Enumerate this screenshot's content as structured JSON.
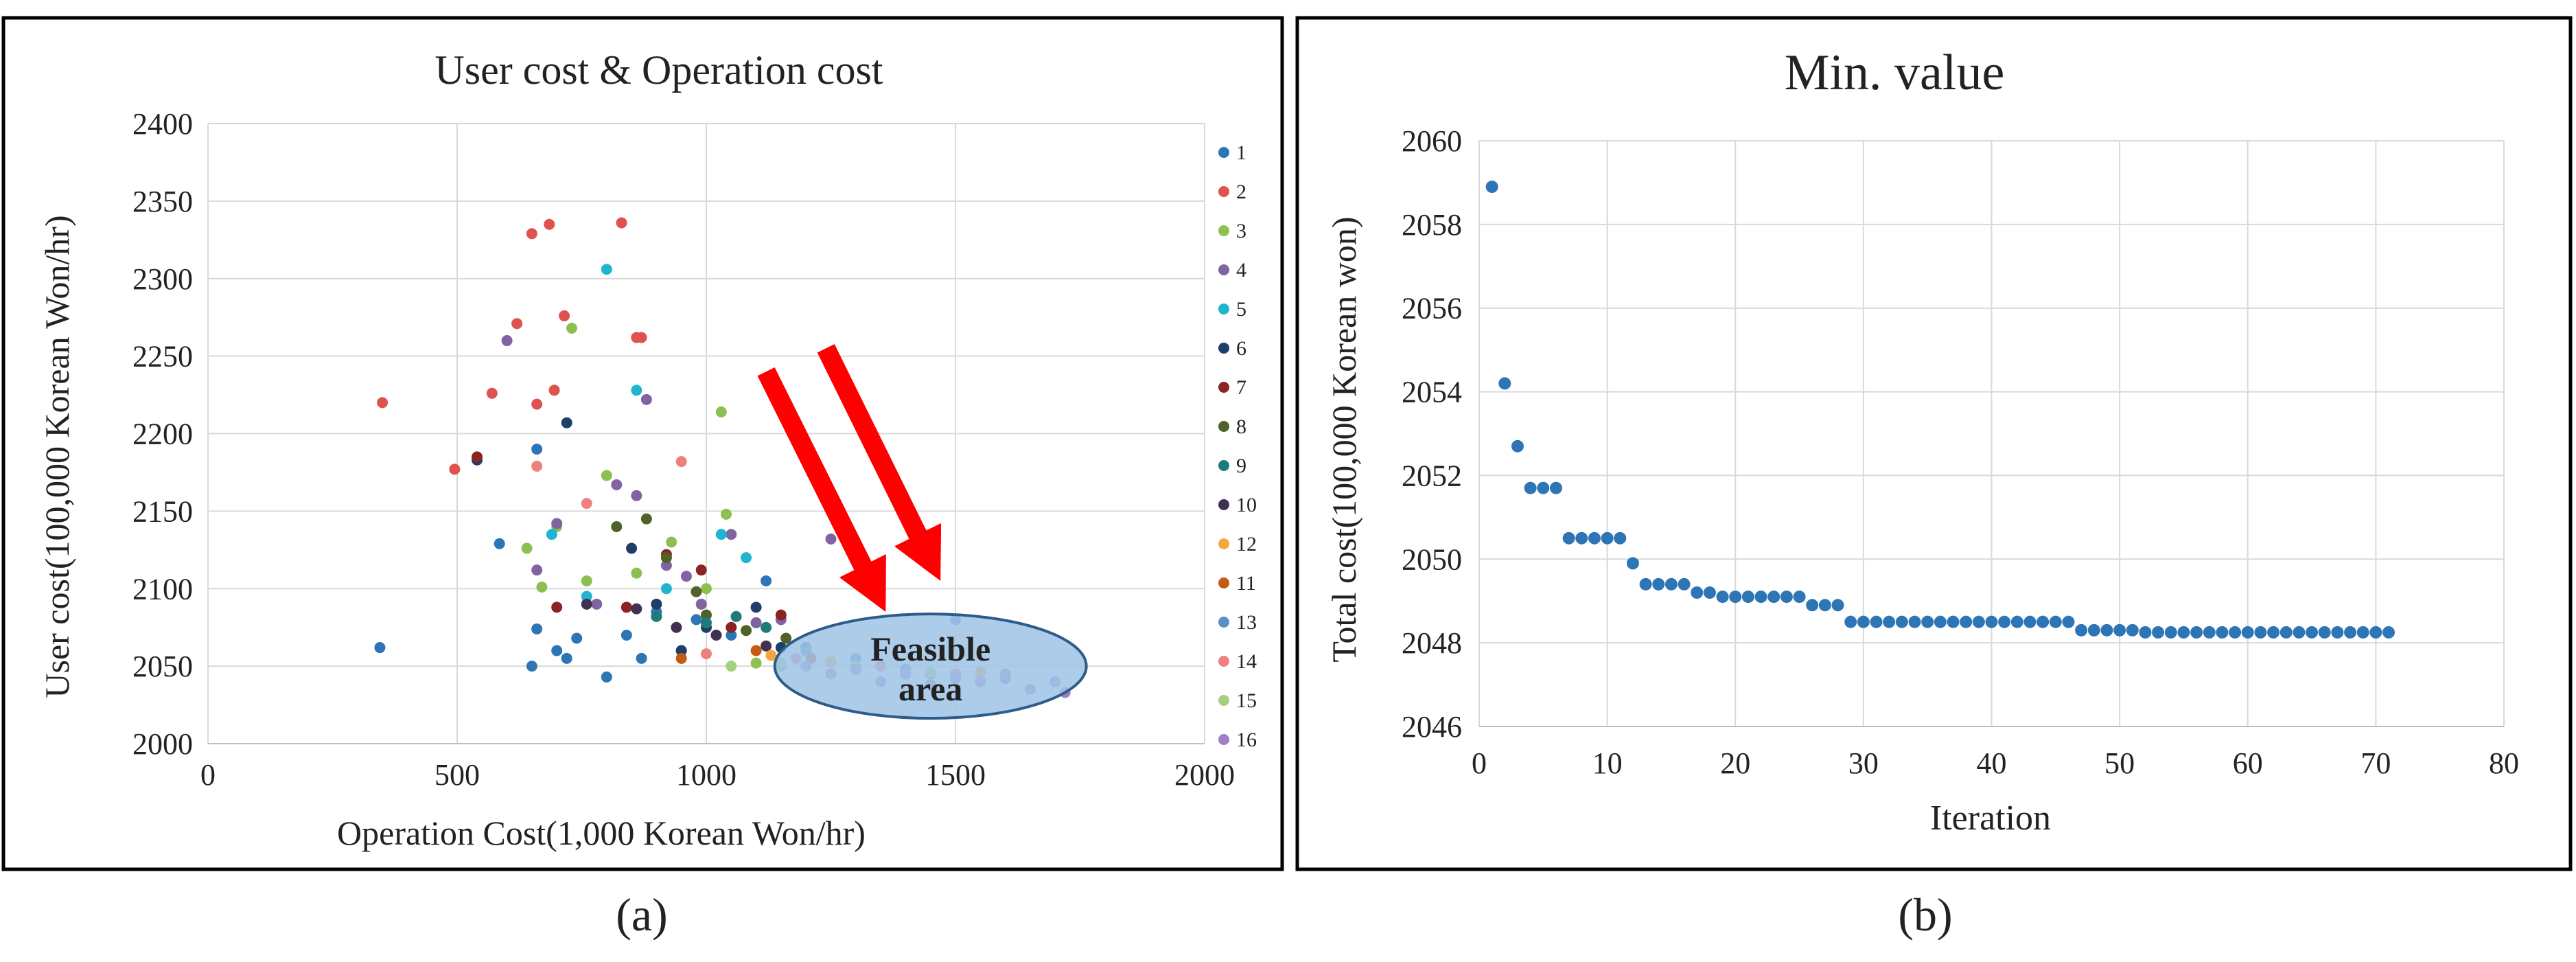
{
  "figure": {
    "colors": {
      "frame": "#000000",
      "grid": "#d9d9d9",
      "axis": "#bfbfbf",
      "arrow": "#ff0000",
      "ellipse_fill": "#9dc3e6",
      "ellipse_stroke": "#2e5c8a",
      "line_marker": "#2e75b6"
    }
  },
  "chart_data": [
    {
      "panel": "(a)",
      "type": "scatter",
      "title": "User cost & Operation cost",
      "xlabel": "Operation Cost(1,000 Korean Won/hr)",
      "ylabel": "User cost(100,000 Korean Won/hr)",
      "xlim": [
        0,
        2000
      ],
      "ylim": [
        2000,
        2400
      ],
      "xticks": [
        0,
        500,
        1000,
        1500,
        2000
      ],
      "yticks": [
        2000,
        2050,
        2100,
        2150,
        2200,
        2250,
        2300,
        2350,
        2400
      ],
      "grid": true,
      "legend": "right",
      "annotation": {
        "text_line1": "Feasible",
        "text_line2": "area",
        "center": [
          1450,
          2050
        ]
      },
      "arrows": [
        {
          "from": [
            1120,
            2240
          ],
          "to": [
            1360,
            2085
          ]
        },
        {
          "from": [
            1240,
            2255
          ],
          "to": [
            1470,
            2105
          ]
        }
      ],
      "series": [
        {
          "name": "1",
          "color": "#2e75b6",
          "points": [
            [
              345,
              2062
            ],
            [
              585,
              2129
            ],
            [
              650,
              2050
            ],
            [
              660,
              2074
            ],
            [
              700,
              2060
            ],
            [
              720,
              2055
            ],
            [
              740,
              2068
            ],
            [
              800,
              2043
            ],
            [
              840,
              2070
            ],
            [
              870,
              2055
            ],
            [
              900,
              2085
            ],
            [
              950,
              2060
            ],
            [
              980,
              2080
            ],
            [
              1050,
              2070
            ],
            [
              1120,
              2105
            ],
            [
              660,
              2190
            ]
          ]
        },
        {
          "name": "2",
          "color": "#e0524e",
          "points": [
            [
              350,
              2220
            ],
            [
              495,
              2177
            ],
            [
              570,
              2226
            ],
            [
              620,
              2271
            ],
            [
              650,
              2329
            ],
            [
              660,
              2219
            ],
            [
              685,
              2335
            ],
            [
              695,
              2228
            ],
            [
              715,
              2276
            ],
            [
              830,
              2336
            ],
            [
              860,
              2262
            ],
            [
              870,
              2262
            ]
          ]
        },
        {
          "name": "3",
          "color": "#8cc152",
          "points": [
            [
              640,
              2126
            ],
            [
              670,
              2101
            ],
            [
              700,
              2140
            ],
            [
              730,
              2268
            ],
            [
              760,
              2105
            ],
            [
              800,
              2173
            ],
            [
              860,
              2110
            ],
            [
              930,
              2130
            ],
            [
              1000,
              2100
            ],
            [
              1030,
              2214
            ],
            [
              1040,
              2148
            ],
            [
              1100,
              2052
            ],
            [
              1150,
              2050
            ]
          ]
        },
        {
          "name": "4",
          "color": "#8064a2",
          "points": [
            [
              600,
              2260
            ],
            [
              660,
              2112
            ],
            [
              700,
              2142
            ],
            [
              780,
              2090
            ],
            [
              820,
              2167
            ],
            [
              860,
              2160
            ],
            [
              880,
              2222
            ],
            [
              920,
              2115
            ],
            [
              960,
              2108
            ],
            [
              990,
              2090
            ],
            [
              1050,
              2135
            ],
            [
              1100,
              2078
            ],
            [
              1150,
              2080
            ],
            [
              1250,
              2132
            ]
          ]
        },
        {
          "name": "5",
          "color": "#1fb5d0",
          "points": [
            [
              800,
              2306
            ],
            [
              860,
              2228
            ],
            [
              690,
              2135
            ],
            [
              760,
              2095
            ],
            [
              920,
              2100
            ],
            [
              1030,
              2135
            ],
            [
              1080,
              2120
            ]
          ]
        },
        {
          "name": "6",
          "color": "#1f3f6b",
          "points": [
            [
              540,
              2183
            ],
            [
              720,
              2207
            ],
            [
              850,
              2126
            ],
            [
              900,
              2090
            ],
            [
              950,
              2060
            ],
            [
              1000,
              2075
            ],
            [
              1100,
              2088
            ],
            [
              1150,
              2062
            ]
          ]
        },
        {
          "name": "7",
          "color": "#8b2323",
          "points": [
            [
              540,
              2185
            ],
            [
              700,
              2088
            ],
            [
              840,
              2088
            ],
            [
              920,
              2122
            ],
            [
              990,
              2112
            ],
            [
              1050,
              2075
            ],
            [
              1150,
              2083
            ]
          ]
        },
        {
          "name": "8",
          "color": "#4f6228",
          "points": [
            [
              820,
              2140
            ],
            [
              880,
              2145
            ],
            [
              920,
              2120
            ],
            [
              980,
              2098
            ],
            [
              1000,
              2083
            ],
            [
              1080,
              2073
            ],
            [
              1160,
              2068
            ]
          ]
        },
        {
          "name": "9",
          "color": "#1f7a7a",
          "points": [
            [
              900,
              2082
            ],
            [
              1000,
              2078
            ],
            [
              1060,
              2082
            ],
            [
              1120,
              2075
            ],
            [
              1200,
              2062
            ]
          ]
        },
        {
          "name": "10",
          "color": "#403152",
          "points": [
            [
              760,
              2090
            ],
            [
              860,
              2087
            ],
            [
              940,
              2075
            ],
            [
              1020,
              2070
            ],
            [
              1120,
              2063
            ]
          ]
        },
        {
          "name": "12",
          "color": "#f7a540",
          "points": [
            [
              1130,
              2057
            ],
            [
              1250,
              2053
            ],
            [
              1400,
              2048
            ],
            [
              1550,
              2046
            ]
          ]
        },
        {
          "name": "11",
          "color": "#c55a11",
          "points": [
            [
              950,
              2055
            ],
            [
              1100,
              2060
            ],
            [
              1210,
              2055
            ],
            [
              1300,
              2050
            ],
            [
              1450,
              2045
            ]
          ]
        },
        {
          "name": "13",
          "color": "#5b8fc7",
          "points": [
            [
              1200,
              2060
            ],
            [
              1300,
              2055
            ],
            [
              1400,
              2048
            ],
            [
              1500,
              2080
            ],
            [
              1600,
              2042
            ]
          ]
        },
        {
          "name": "14",
          "color": "#f08080",
          "points": [
            [
              660,
              2179
            ],
            [
              760,
              2155
            ],
            [
              950,
              2182
            ],
            [
              1000,
              2058
            ],
            [
              1180,
              2055
            ],
            [
              1350,
              2050
            ],
            [
              1500,
              2045
            ],
            [
              1700,
              2040
            ]
          ]
        },
        {
          "name": "15",
          "color": "#a5d07f",
          "points": [
            [
              1050,
              2050
            ],
            [
              1150,
              2052
            ],
            [
              1300,
              2050
            ],
            [
              1450,
              2046
            ],
            [
              1600,
              2045
            ]
          ]
        },
        {
          "name": "16",
          "color": "#a07ec9",
          "points": [
            [
              1300,
              2048
            ],
            [
              1350,
              2040
            ],
            [
              1400,
              2045
            ],
            [
              1450,
              2038
            ],
            [
              1500,
              2042
            ],
            [
              1550,
              2040
            ],
            [
              1600,
              2045
            ],
            [
              1650,
              2035
            ],
            [
              1700,
              2040
            ],
            [
              1720,
              2033
            ],
            [
              1200,
              2050
            ],
            [
              1250,
              2045
            ]
          ]
        }
      ]
    },
    {
      "panel": "(b)",
      "type": "scatter",
      "title": "Min. value",
      "xlabel": "Iteration",
      "ylabel": "Total cost(100,000 Korean won)",
      "xlim": [
        0,
        80
      ],
      "ylim": [
        2046,
        2060
      ],
      "xticks": [
        0,
        10,
        20,
        30,
        40,
        50,
        60,
        70,
        80
      ],
      "yticks": [
        2046,
        2048,
        2050,
        2052,
        2054,
        2056,
        2058,
        2060
      ],
      "grid": true,
      "x": [
        1,
        2,
        3,
        4,
        5,
        6,
        7,
        8,
        9,
        10,
        11,
        12,
        13,
        14,
        15,
        16,
        17,
        18,
        19,
        20,
        21,
        22,
        23,
        24,
        25,
        26,
        27,
        28,
        29,
        30,
        31,
        32,
        33,
        34,
        35,
        36,
        37,
        38,
        39,
        40,
        41,
        42,
        43,
        44,
        45,
        46,
        47,
        48,
        49,
        50,
        51,
        52,
        53,
        54,
        55,
        56,
        57,
        58,
        59,
        60,
        61,
        62,
        63,
        64,
        65,
        66,
        67,
        68,
        69,
        70,
        71
      ],
      "y": [
        2058.9,
        2054.2,
        2052.7,
        2051.7,
        2051.7,
        2051.7,
        2050.5,
        2050.5,
        2050.5,
        2050.5,
        2050.5,
        2049.9,
        2049.4,
        2049.4,
        2049.4,
        2049.4,
        2049.2,
        2049.2,
        2049.1,
        2049.1,
        2049.1,
        2049.1,
        2049.1,
        2049.1,
        2049.1,
        2048.9,
        2048.9,
        2048.9,
        2048.5,
        2048.5,
        2048.5,
        2048.5,
        2048.5,
        2048.5,
        2048.5,
        2048.5,
        2048.5,
        2048.5,
        2048.5,
        2048.5,
        2048.5,
        2048.5,
        2048.5,
        2048.5,
        2048.5,
        2048.5,
        2048.3,
        2048.3,
        2048.3,
        2048.3,
        2048.3,
        2048.25,
        2048.25,
        2048.25,
        2048.25,
        2048.25,
        2048.25,
        2048.25,
        2048.25,
        2048.25,
        2048.25,
        2048.25,
        2048.25,
        2048.25,
        2048.25,
        2048.25,
        2048.25,
        2048.25,
        2048.25,
        2048.25,
        2048.25
      ]
    }
  ]
}
